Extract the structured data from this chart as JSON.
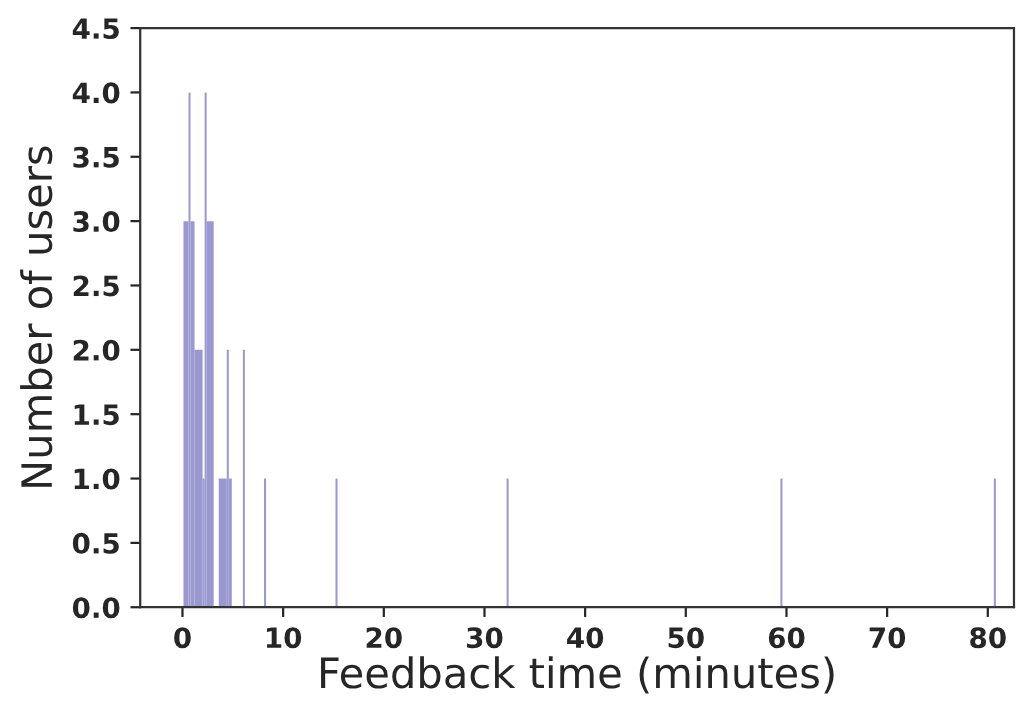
{
  "chart_data": {
    "type": "histogram",
    "xlabel": "Feedback time (minutes)",
    "ylabel": "Number of users",
    "bins": [
      0.1,
      0.6,
      0.8,
      1.2,
      2.0,
      2.2,
      2.4,
      3.1,
      3.6,
      4.4,
      4.6,
      4.9,
      6.0,
      6.2,
      8.1,
      8.3,
      15.2,
      15.4,
      32.2,
      32.4,
      59.4,
      59.6,
      80.6,
      80.8
    ],
    "values": [
      3,
      4,
      3,
      2,
      1,
      4,
      3,
      0,
      1,
      2,
      1,
      0,
      2,
      0,
      1,
      0,
      1,
      0,
      1,
      0,
      1,
      0,
      1
    ],
    "color": "#9999d0",
    "xlim": [
      -4.2,
      82.6
    ],
    "xticks": [
      0,
      10,
      20,
      30,
      40,
      50,
      60,
      70,
      80
    ],
    "ylim": [
      0,
      4.5
    ],
    "yticks": [
      {
        "value": 0,
        "label": "0.0"
      },
      {
        "value": 0.5,
        "label": "0.5"
      },
      {
        "value": 1,
        "label": "1.0"
      },
      {
        "value": 1.5,
        "label": "1.5"
      },
      {
        "value": 2,
        "label": "2.0"
      },
      {
        "value": 2.5,
        "label": "2.5"
      },
      {
        "value": 3,
        "label": "3.0"
      },
      {
        "value": 3.5,
        "label": "3.5"
      },
      {
        "value": 4,
        "label": "4.0"
      },
      {
        "value": 4.5,
        "label": "4.5"
      }
    ],
    "grid": false
  }
}
